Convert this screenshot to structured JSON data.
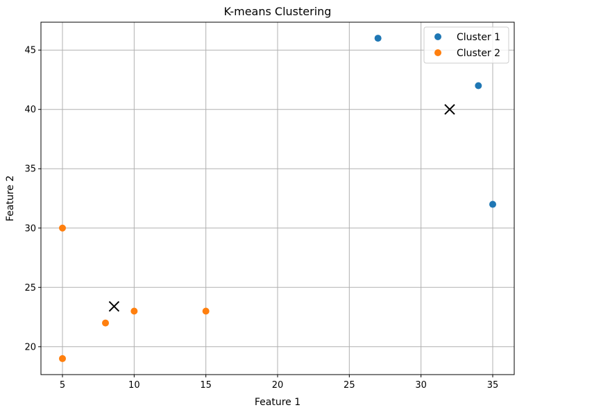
{
  "chart_data": {
    "type": "scatter",
    "title": "K-means Clustering",
    "xlabel": "Feature 1",
    "ylabel": "Feature 2",
    "xlim": [
      3.5,
      36.5
    ],
    "ylim": [
      17.65,
      47.35
    ],
    "xticks": [
      5,
      10,
      15,
      20,
      25,
      30,
      35
    ],
    "yticks": [
      20,
      25,
      30,
      35,
      40,
      45
    ],
    "grid": true,
    "legend_position": "top-right",
    "series": [
      {
        "name": "Cluster 1",
        "color": "#1f77b4",
        "points": [
          {
            "x": 27,
            "y": 46
          },
          {
            "x": 34,
            "y": 42
          },
          {
            "x": 35,
            "y": 32
          }
        ]
      },
      {
        "name": "Cluster 2",
        "color": "#ff7f0e",
        "points": [
          {
            "x": 5,
            "y": 30
          },
          {
            "x": 8,
            "y": 22
          },
          {
            "x": 10,
            "y": 23
          },
          {
            "x": 15,
            "y": 23
          },
          {
            "x": 5,
            "y": 19
          }
        ]
      }
    ],
    "centroids": {
      "marker": "x",
      "color": "#000000",
      "points": [
        {
          "x": 32,
          "y": 40
        },
        {
          "x": 8.6,
          "y": 23.4
        }
      ]
    }
  }
}
